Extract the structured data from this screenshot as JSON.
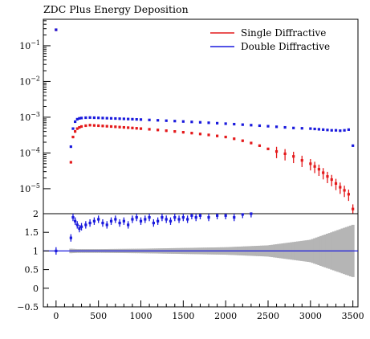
{
  "chart_data": [
    {
      "type": "scatter",
      "title": "ZDC Plus Energy Deposition",
      "yscale": "log",
      "xlim": [
        -150,
        3560
      ],
      "ylim": [
        2e-06,
        0.55
      ],
      "y_ticks": [
        {
          "value": 0.1,
          "mant": "10",
          "exp": "−1"
        },
        {
          "value": 0.01,
          "mant": "10",
          "exp": "−2"
        },
        {
          "value": 0.001,
          "mant": "10",
          "exp": "−3"
        },
        {
          "value": 0.0001,
          "mant": "10",
          "exp": "−4"
        },
        {
          "value": 1e-05,
          "mant": "10",
          "exp": "−5"
        }
      ],
      "legend": {
        "position": "top-right"
      },
      "series": [
        {
          "name": "Single Diffractive",
          "color": "#e41a1c",
          "x": [
            0,
            175,
            200,
            225,
            250,
            275,
            300,
            350,
            400,
            450,
            500,
            550,
            600,
            650,
            700,
            750,
            800,
            850,
            900,
            950,
            1000,
            1100,
            1200,
            1300,
            1400,
            1500,
            1600,
            1700,
            1800,
            1900,
            2000,
            2100,
            2200,
            2300,
            2400,
            2500,
            2600,
            2700,
            2800,
            2900,
            3000,
            3050,
            3100,
            3150,
            3200,
            3250,
            3300,
            3350,
            3400,
            3450,
            3500
          ],
          "y": [
            0.28,
            5.5e-05,
            0.00028,
            0.0004,
            0.00048,
            0.00052,
            0.00055,
            0.00058,
            0.0006,
            0.00059,
            0.00058,
            0.00057,
            0.00056,
            0.00055,
            0.00054,
            0.00053,
            0.00052,
            0.00051,
            0.0005,
            0.00049,
            0.00048,
            0.00046,
            0.00044,
            0.00042,
            0.0004,
            0.00038,
            0.00036,
            0.00034,
            0.00032,
            0.0003,
            0.00028,
            0.00025,
            0.00022,
            0.00019,
            0.00016,
            0.00013,
            0.00011,
            9.5e-05,
            8e-05,
            6.2e-05,
            5e-05,
            4.2e-05,
            3.5e-05,
            2.8e-05,
            2.2e-05,
            1.8e-05,
            1.4e-05,
            1.1e-05,
            9e-06,
            7e-06,
            2.7e-06
          ]
        },
        {
          "name": "Double Diffractive",
          "color": "#1a1add",
          "x": [
            0,
            175,
            200,
            225,
            250,
            275,
            300,
            350,
            400,
            450,
            500,
            550,
            600,
            650,
            700,
            750,
            800,
            850,
            900,
            950,
            1000,
            1100,
            1200,
            1300,
            1400,
            1500,
            1600,
            1700,
            1800,
            1900,
            2000,
            2100,
            2200,
            2300,
            2400,
            2500,
            2600,
            2700,
            2800,
            2900,
            3000,
            3050,
            3100,
            3150,
            3200,
            3250,
            3300,
            3350,
            3400,
            3450,
            3500
          ],
          "y": [
            0.28,
            0.00015,
            0.00048,
            0.00075,
            0.00088,
            0.00093,
            0.00095,
            0.00097,
            0.00098,
            0.00097,
            0.00096,
            0.00095,
            0.00094,
            0.00093,
            0.00092,
            0.00091,
            0.0009,
            0.00089,
            0.00088,
            0.00087,
            0.00086,
            0.00084,
            0.00082,
            0.0008,
            0.00078,
            0.00076,
            0.00074,
            0.00072,
            0.0007,
            0.00068,
            0.00066,
            0.00064,
            0.00062,
            0.0006,
            0.00058,
            0.00056,
            0.00054,
            0.00052,
            0.0005,
            0.00049,
            0.00048,
            0.00047,
            0.00046,
            0.00045,
            0.00044,
            0.00043,
            0.00043,
            0.00042,
            0.00043,
            0.00045,
            0.00016
          ]
        }
      ]
    },
    {
      "type": "scatter",
      "subtype": "ratio",
      "xlim": [
        -150,
        3560
      ],
      "ylim": [
        -0.5,
        2
      ],
      "x_ticks": [
        "0",
        "500",
        "1000",
        "1500",
        "2000",
        "2500",
        "3000",
        "3500"
      ],
      "y_ticks": [
        "−0.5",
        "0",
        "0.5",
        "1",
        "1.5",
        "2"
      ],
      "reference_line": 1,
      "band": {
        "x": [
          175,
          250,
          500,
          1000,
          1500,
          2000,
          2500,
          3000,
          3250,
          3500
        ],
        "half_width": [
          0.06,
          0.05,
          0.05,
          0.06,
          0.08,
          0.1,
          0.15,
          0.3,
          0.5,
          0.7
        ]
      },
      "series": [
        {
          "name": "Double Diffractive",
          "color": "#1a1add",
          "x": [
            0,
            175,
            200,
            225,
            250,
            275,
            300,
            350,
            400,
            450,
            500,
            550,
            600,
            650,
            700,
            750,
            800,
            850,
            900,
            950,
            1000,
            1050,
            1100,
            1150,
            1200,
            1250,
            1300,
            1350,
            1400,
            1450,
            1500,
            1550,
            1600,
            1650,
            1700,
            1800,
            1900,
            2000,
            2100,
            2200,
            2300
          ],
          "y": [
            1.0,
            1.35,
            1.9,
            1.8,
            1.7,
            1.6,
            1.65,
            1.7,
            1.75,
            1.8,
            1.85,
            1.75,
            1.7,
            1.8,
            1.85,
            1.75,
            1.8,
            1.7,
            1.85,
            1.9,
            1.8,
            1.85,
            1.9,
            1.75,
            1.8,
            1.9,
            1.85,
            1.8,
            1.9,
            1.85,
            1.9,
            1.85,
            1.95,
            1.9,
            1.95,
            1.9,
            1.95,
            1.95,
            1.9,
            1.98,
            2.0
          ]
        }
      ]
    }
  ]
}
